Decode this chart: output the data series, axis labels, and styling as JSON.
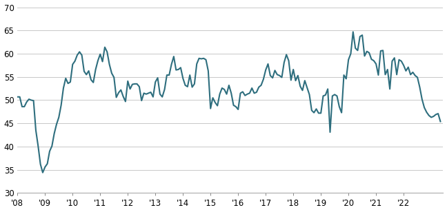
{
  "line_color": "#2E6E7E",
  "line_width": 1.5,
  "background_color": "#ffffff",
  "grid_color": "#c8c8c8",
  "ylim": [
    30,
    70
  ],
  "yticks": [
    30,
    35,
    40,
    45,
    50,
    55,
    60,
    65,
    70
  ],
  "xtick_labels": [
    "'08",
    "'09",
    "'10",
    "'11",
    "'12",
    "'13",
    "'14",
    "'15",
    "'16",
    "'17",
    "'18",
    "'19",
    "'20",
    "'21",
    "'22"
  ],
  "start_year": 2008,
  "values": [
    50.7,
    50.7,
    48.6,
    48.6,
    49.6,
    50.2,
    50.0,
    49.9,
    43.5,
    40.1,
    36.2,
    34.4,
    35.6,
    36.3,
    39.0,
    40.1,
    42.8,
    44.8,
    46.3,
    48.9,
    52.6,
    54.7,
    53.6,
    53.9,
    57.7,
    58.4,
    59.7,
    60.4,
    59.7,
    56.2,
    55.5,
    56.3,
    54.4,
    53.8,
    56.6,
    58.5,
    59.9,
    58.3,
    61.4,
    60.4,
    57.7,
    55.8,
    54.9,
    50.6,
    51.6,
    52.2,
    50.8,
    49.7,
    54.1,
    52.4,
    53.4,
    53.5,
    53.5,
    52.9,
    49.9,
    51.5,
    51.3,
    51.5,
    51.7,
    50.7,
    53.9,
    54.8,
    51.3,
    50.7,
    52.3,
    55.4,
    55.4,
    57.7,
    59.4,
    56.5,
    56.6,
    57.0,
    54.7,
    53.2,
    52.9,
    55.4,
    52.8,
    53.5,
    57.8,
    59.0,
    58.9,
    59.0,
    58.7,
    56.3,
    48.2,
    50.5,
    49.5,
    48.8,
    51.3,
    52.6,
    52.3,
    51.3,
    53.2,
    51.5,
    48.9,
    48.6,
    48.0,
    51.5,
    51.8,
    51.0,
    51.3,
    51.5,
    52.6,
    51.5,
    51.7,
    52.8,
    53.2,
    54.5,
    56.5,
    57.8,
    55.3,
    54.8,
    56.4,
    55.5,
    55.3,
    54.9,
    58.1,
    59.8,
    58.5,
    54.3,
    56.6,
    54.2,
    55.3,
    53.0,
    52.1,
    54.2,
    52.7,
    51.2,
    47.8,
    47.3,
    48.1,
    47.2,
    47.2,
    50.9,
    51.1,
    52.4,
    43.1,
    50.9,
    51.2,
    50.9,
    48.6,
    47.3,
    55.4,
    54.6,
    58.7,
    60.0,
    64.7,
    61.2,
    60.7,
    63.7,
    64.0,
    59.5,
    60.5,
    60.2,
    58.8,
    58.5,
    57.8,
    55.4,
    60.6,
    60.7,
    55.5,
    56.6,
    52.4,
    58.4,
    59.1,
    55.5,
    58.7,
    58.4,
    57.5,
    56.3,
    57.1,
    55.5,
    56.0,
    55.3,
    54.9,
    52.8,
    50.2,
    48.4,
    47.4,
    46.7,
    46.3,
    46.5,
    46.9,
    47.1,
    45.4
  ]
}
